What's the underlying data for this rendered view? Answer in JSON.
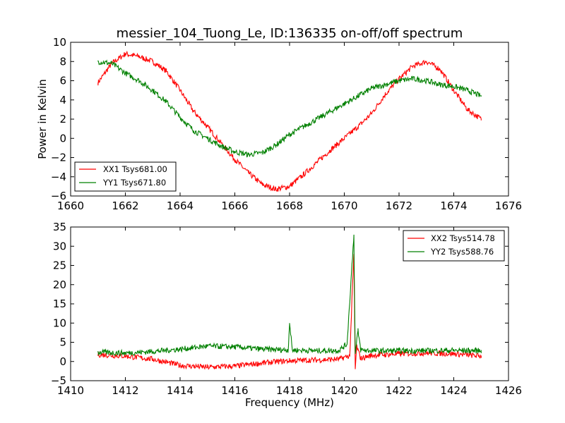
{
  "chart_data": [
    {
      "type": "line",
      "title": "messier_104_Tuong_Le, ID:136335 on-off/off spectrum",
      "xlabel": "",
      "ylabel": "Power in Kelvin",
      "xlim": [
        1660,
        1676
      ],
      "ylim": [
        -6,
        10
      ],
      "xticks": [
        1660,
        1662,
        1664,
        1666,
        1668,
        1670,
        1672,
        1674,
        1676
      ],
      "yticks": [
        -6,
        -4,
        -2,
        0,
        2,
        4,
        6,
        8,
        10
      ],
      "legend": "lower-left",
      "grid": false,
      "series": [
        {
          "name": "XX1 Tsys681.00",
          "color": "#ff0000",
          "x": [
            1661.0,
            1661.5,
            1662.0,
            1662.5,
            1663.0,
            1663.5,
            1664.0,
            1664.5,
            1665.0,
            1665.5,
            1666.0,
            1666.5,
            1667.0,
            1667.5,
            1668.0,
            1668.5,
            1669.0,
            1669.5,
            1670.0,
            1670.5,
            1671.0,
            1671.5,
            1672.0,
            1672.5,
            1673.0,
            1673.5,
            1674.0,
            1674.5,
            1675.0
          ],
          "y": [
            5.8,
            7.8,
            8.8,
            8.5,
            8.0,
            7.0,
            5.0,
            2.8,
            1.2,
            -0.5,
            -2.2,
            -3.6,
            -4.8,
            -5.3,
            -5.0,
            -3.8,
            -2.5,
            -1.2,
            0.0,
            1.2,
            2.6,
            4.6,
            6.2,
            7.5,
            8.0,
            7.2,
            5.0,
            3.0,
            2.0
          ]
        },
        {
          "name": "YY1 Tsys671.80",
          "color": "#008000",
          "x": [
            1661.0,
            1661.5,
            1662.0,
            1662.5,
            1663.0,
            1663.5,
            1664.0,
            1664.5,
            1665.0,
            1665.5,
            1666.0,
            1666.5,
            1667.0,
            1667.5,
            1668.0,
            1668.5,
            1669.0,
            1669.5,
            1670.0,
            1670.5,
            1671.0,
            1671.5,
            1672.0,
            1672.5,
            1673.0,
            1673.5,
            1674.0,
            1674.5,
            1675.0
          ],
          "y": [
            8.0,
            7.8,
            6.8,
            6.0,
            5.0,
            3.8,
            2.2,
            0.8,
            0.0,
            -0.8,
            -1.4,
            -1.7,
            -1.5,
            -0.7,
            0.4,
            1.2,
            2.0,
            2.8,
            3.6,
            4.4,
            5.2,
            5.6,
            6.0,
            6.2,
            6.0,
            5.6,
            5.4,
            5.0,
            4.4
          ]
        }
      ]
    },
    {
      "type": "line",
      "title": "",
      "xlabel": "Frequency (MHz)",
      "ylabel": "",
      "xlim": [
        1410,
        1426
      ],
      "ylim": [
        -5,
        35
      ],
      "xticks": [
        1410,
        1412,
        1414,
        1416,
        1418,
        1420,
        1422,
        1424,
        1426
      ],
      "yticks": [
        -5,
        0,
        5,
        10,
        15,
        20,
        25,
        30,
        35
      ],
      "legend": "upper-right",
      "grid": false,
      "series": [
        {
          "name": "XX2 Tsys514.78",
          "color": "#ff0000",
          "x": [
            1411.0,
            1412.0,
            1413.0,
            1414.0,
            1415.0,
            1416.0,
            1417.0,
            1418.0,
            1419.0,
            1419.8,
            1420.2,
            1420.35,
            1420.4,
            1420.45,
            1420.6,
            1421.0,
            1422.0,
            1423.0,
            1424.0,
            1425.0
          ],
          "y": [
            1.8,
            1.4,
            0.6,
            -1.0,
            -1.5,
            -1.2,
            -0.4,
            0.2,
            0.4,
            0.6,
            1.5,
            28.0,
            -2.0,
            4.0,
            0.8,
            1.6,
            2.0,
            2.2,
            2.0,
            1.4
          ]
        },
        {
          "name": "YY2 Tsys588.76",
          "color": "#008000",
          "x": [
            1411.0,
            1412.0,
            1413.0,
            1414.0,
            1415.0,
            1416.0,
            1417.0,
            1417.95,
            1418.0,
            1418.1,
            1419.0,
            1419.8,
            1420.1,
            1420.35,
            1420.4,
            1420.5,
            1420.6,
            1421.0,
            1422.0,
            1423.0,
            1424.0,
            1425.0
          ],
          "y": [
            2.4,
            2.2,
            2.6,
            3.2,
            4.0,
            3.8,
            3.2,
            3.0,
            10.0,
            3.0,
            2.8,
            2.9,
            4.5,
            33.0,
            2.0,
            8.0,
            3.0,
            2.8,
            2.8,
            2.8,
            2.9,
            2.8
          ]
        }
      ]
    }
  ]
}
